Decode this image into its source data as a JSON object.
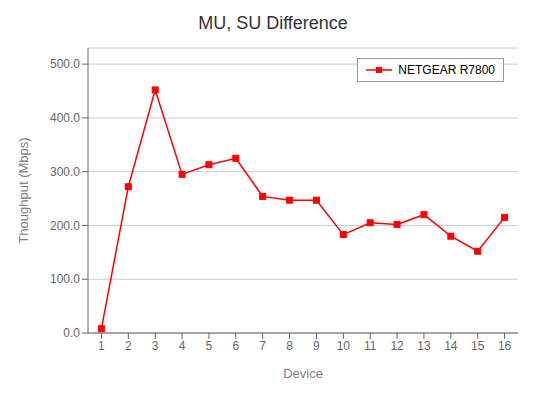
{
  "chart_data": {
    "type": "line",
    "title": "MU, SU Difference",
    "xlabel": "Device",
    "ylabel": "Thoughput (Mbps)",
    "x": [
      1,
      2,
      3,
      4,
      5,
      6,
      7,
      8,
      9,
      10,
      11,
      12,
      13,
      14,
      15,
      16
    ],
    "series": [
      {
        "name": "NETGEAR R7800",
        "color": "#FF0000",
        "marker": "square",
        "values": [
          8,
          272,
          452,
          295,
          313,
          325,
          254,
          247,
          247,
          183,
          205,
          202,
          220,
          180,
          152,
          215
        ]
      }
    ],
    "xlim": [
      0.5,
      16.5
    ],
    "xticks": [
      1,
      2,
      3,
      4,
      5,
      6,
      7,
      8,
      9,
      10,
      11,
      12,
      13,
      14,
      15,
      16
    ],
    "ylim": [
      0,
      530
    ],
    "yticks": [
      {
        "value": 0,
        "label": "0.0"
      },
      {
        "value": 100,
        "label": "100.0"
      },
      {
        "value": 200,
        "label": "200.0"
      },
      {
        "value": 300,
        "label": "300.0"
      },
      {
        "value": 400,
        "label": "400.0"
      },
      {
        "value": 500,
        "label": "500.0"
      }
    ],
    "grid": true,
    "legend": "upper right"
  }
}
